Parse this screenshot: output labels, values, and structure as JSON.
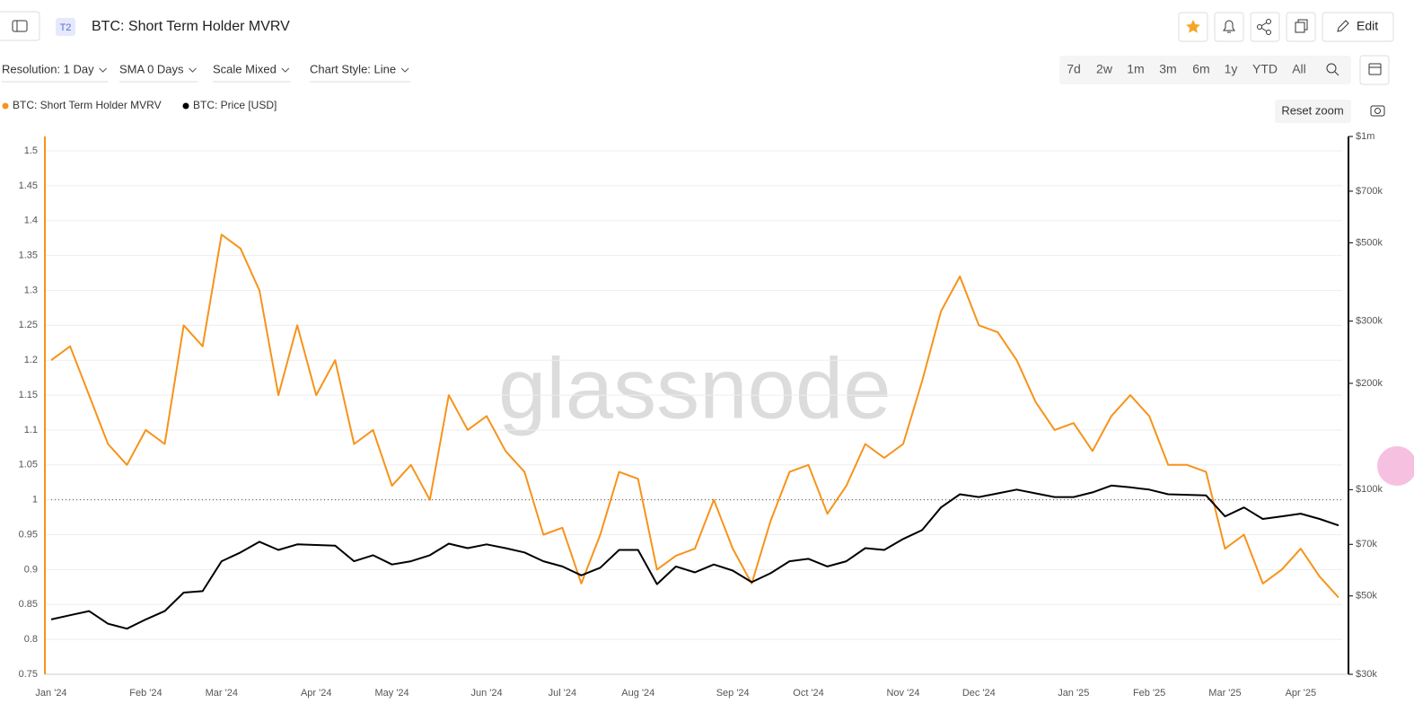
{
  "header": {
    "badge": "T2",
    "title": "BTC: Short Term Holder MVRV",
    "edit": "Edit"
  },
  "toolbar": {
    "dropdowns": [
      "Resolution: 1 Day",
      "SMA 0 Days",
      "Scale Mixed",
      "Chart Style: Line"
    ],
    "ranges": [
      "7d",
      "2w",
      "1m",
      "3m",
      "6m",
      "1y",
      "YTD",
      "All"
    ]
  },
  "reset_zoom": "Reset zoom",
  "watermark": "glassnode",
  "chart_data": {
    "type": "line",
    "categories": [
      "Jan '24",
      null,
      null,
      null,
      null,
      "Feb '24",
      null,
      null,
      null,
      "Mar '24",
      null,
      null,
      null,
      null,
      "Apr '24",
      null,
      null,
      null,
      "May '24",
      null,
      null,
      null,
      null,
      "Jun '24",
      null,
      null,
      null,
      "Jul '24",
      null,
      null,
      null,
      "Aug '24",
      null,
      null,
      null,
      null,
      "Sep '24",
      null,
      null,
      null,
      "Oct '24",
      null,
      null,
      null,
      null,
      "Nov '24",
      null,
      null,
      null,
      "Dec '24",
      null,
      null,
      null,
      null,
      "Jan '25",
      null,
      null,
      null,
      "Feb '25",
      null,
      null,
      null,
      "Mar '25",
      null,
      null,
      null,
      "Apr '25",
      null,
      null
    ],
    "series": [
      {
        "name": "BTC: Short Term Holder MVRV",
        "color": "#f7931a",
        "axis": "y",
        "values": [
          1.2,
          1.22,
          1.15,
          1.08,
          1.05,
          1.1,
          1.08,
          1.25,
          1.22,
          1.38,
          1.36,
          1.3,
          1.15,
          1.25,
          1.15,
          1.2,
          1.08,
          1.1,
          1.02,
          1.05,
          1.0,
          1.15,
          1.1,
          1.12,
          1.07,
          1.04,
          0.95,
          0.96,
          0.88,
          0.95,
          1.04,
          1.03,
          0.9,
          0.92,
          0.93,
          1.0,
          0.93,
          0.88,
          0.97,
          1.04,
          1.05,
          0.98,
          1.02,
          1.08,
          1.06,
          1.08,
          1.17,
          1.27,
          1.32,
          1.25,
          1.24,
          1.2,
          1.14,
          1.1,
          1.11,
          1.07,
          1.12,
          1.15,
          1.12,
          1.05,
          1.05,
          1.04,
          0.93,
          0.95,
          0.88,
          0.9,
          0.93,
          0.89,
          0.86
        ]
      },
      {
        "name": "BTC: Price [USD]",
        "color": "#000000",
        "axis": "y2",
        "values": [
          42900,
          44100,
          45300,
          41700,
          40400,
          42900,
          45300,
          51100,
          51600,
          62700,
          66400,
          71200,
          67500,
          70000,
          69700,
          69400,
          62700,
          65200,
          61400,
          62700,
          65200,
          70300,
          68300,
          70000,
          68300,
          66400,
          62700,
          60600,
          57200,
          60100,
          67500,
          67500,
          54000,
          60600,
          58300,
          61400,
          59000,
          54700,
          58000,
          62700,
          63700,
          60600,
          62700,
          68300,
          67500,
          72500,
          76800,
          89000,
          97000,
          95300,
          97600,
          100000,
          97600,
          95300,
          95300,
          98200,
          102700,
          101500,
          100000,
          97000,
          96700,
          96300,
          84000,
          89000,
          82600,
          84000,
          85500,
          82600,
          79200
        ]
      }
    ],
    "ylim": [
      0.75,
      1.5
    ],
    "yticks": [
      0.75,
      0.8,
      0.85,
      0.9,
      0.95,
      1,
      1.05,
      1.1,
      1.15,
      1.2,
      1.25,
      1.3,
      1.35,
      1.4,
      1.45,
      1.5
    ],
    "y2lim": [
      30000,
      1000000
    ],
    "y2_log": true,
    "y2ticks": [
      {
        "value": 30000,
        "label": "$30k"
      },
      {
        "value": 50000,
        "label": "$50k"
      },
      {
        "value": 70000,
        "label": "$70k"
      },
      {
        "value": 100000,
        "label": "$100k"
      },
      {
        "value": 200000,
        "label": "$200k"
      },
      {
        "value": 300000,
        "label": "$300k"
      },
      {
        "value": 500000,
        "label": "$500k"
      },
      {
        "value": 700000,
        "label": "$700k"
      },
      {
        "value": 1000000,
        "label": "$1m"
      }
    ],
    "reference_line": 1,
    "grid": true
  }
}
